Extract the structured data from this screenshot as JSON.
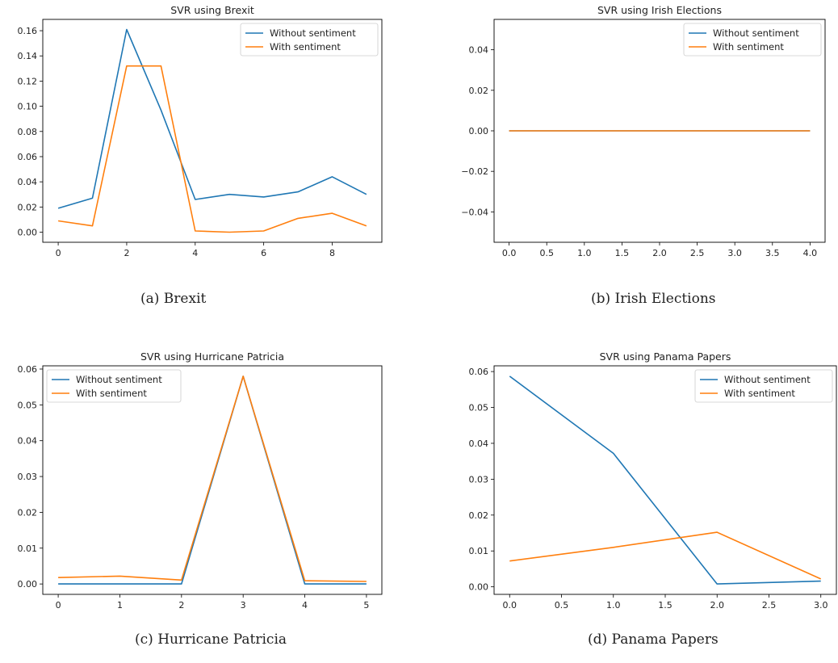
{
  "figure": {
    "panels": [
      {
        "caption": "(a)  Brexit"
      },
      {
        "caption": "(b)  Irish Elections"
      },
      {
        "caption": "(c)  Hurricane Patricia"
      },
      {
        "caption": "(d)  Panama Papers"
      }
    ]
  },
  "colors": {
    "without": "#1f77b4",
    "with": "#ff7f0e"
  },
  "chart_data": [
    {
      "type": "line",
      "title": "SVR using Brexit",
      "xlabel": "",
      "ylabel": "",
      "x": [
        0,
        1,
        2,
        3,
        4,
        5,
        6,
        7,
        8,
        9
      ],
      "series": [
        {
          "name": "Without sentiment",
          "values": [
            0.019,
            0.027,
            0.161,
            0.097,
            0.026,
            0.03,
            0.028,
            0.032,
            0.044,
            0.03
          ]
        },
        {
          "name": "With sentiment",
          "values": [
            0.009,
            0.005,
            0.132,
            0.132,
            0.001,
            0.0,
            0.001,
            0.011,
            0.015,
            0.005
          ]
        }
      ],
      "xlim": [
        -0.45,
        9.45
      ],
      "ylim": [
        -0.008,
        0.169
      ],
      "xticks": [
        0,
        2,
        4,
        6,
        8
      ],
      "xtick_labels": [
        "0",
        "2",
        "4",
        "6",
        "8"
      ],
      "yticks": [
        0,
        0.02,
        0.04,
        0.06,
        0.08,
        0.1,
        0.12,
        0.14,
        0.16
      ],
      "ytick_labels": [
        "0.00",
        "0.02",
        "0.04",
        "0.06",
        "0.08",
        "0.10",
        "0.12",
        "0.14",
        "0.16"
      ],
      "legend": "upper right",
      "grid": false
    },
    {
      "type": "line",
      "title": "SVR using Irish Elections",
      "xlabel": "",
      "ylabel": "",
      "x": [
        0,
        1,
        2,
        3,
        4
      ],
      "series": [
        {
          "name": "Without sentiment",
          "values": [
            0,
            0,
            0,
            0,
            0
          ]
        },
        {
          "name": "With sentiment",
          "values": [
            0,
            0,
            0,
            0,
            0
          ]
        }
      ],
      "xlim": [
        -0.2,
        4.2
      ],
      "ylim": [
        -0.055,
        0.055
      ],
      "xticks": [
        0,
        0.5,
        1,
        1.5,
        2,
        2.5,
        3,
        3.5,
        4
      ],
      "xtick_labels": [
        "0.0",
        "0.5",
        "1.0",
        "1.5",
        "2.0",
        "2.5",
        "3.0",
        "3.5",
        "4.0"
      ],
      "yticks": [
        -0.04,
        -0.02,
        0,
        0.02,
        0.04
      ],
      "ytick_labels": [
        "−0.04",
        "−0.02",
        "0.00",
        "0.02",
        "0.04"
      ],
      "legend": "upper right",
      "grid": false
    },
    {
      "type": "line",
      "title": "SVR using Hurricane Patricia",
      "xlabel": "",
      "ylabel": "",
      "x": [
        0,
        1,
        2,
        3,
        4,
        5
      ],
      "series": [
        {
          "name": "Without sentiment",
          "values": [
            0.0,
            0.0,
            0.0,
            0.058,
            0.0,
            0.0
          ]
        },
        {
          "name": "With sentiment",
          "values": [
            0.0018,
            0.0022,
            0.0011,
            0.058,
            0.0009,
            0.0007
          ]
        }
      ],
      "xlim": [
        -0.25,
        5.25
      ],
      "ylim": [
        -0.0029,
        0.0609
      ],
      "xticks": [
        0,
        1,
        2,
        3,
        4,
        5
      ],
      "xtick_labels": [
        "0",
        "1",
        "2",
        "3",
        "4",
        "5"
      ],
      "yticks": [
        0,
        0.01,
        0.02,
        0.03,
        0.04,
        0.05,
        0.06
      ],
      "ytick_labels": [
        "0.00",
        "0.01",
        "0.02",
        "0.03",
        "0.04",
        "0.05",
        "0.06"
      ],
      "legend": "upper left",
      "grid": false
    },
    {
      "type": "line",
      "title": "SVR using Panama Papers",
      "xlabel": "",
      "ylabel": "",
      "x": [
        0,
        1,
        2,
        3
      ],
      "series": [
        {
          "name": "Without sentiment",
          "values": [
            0.0587,
            0.0372,
            0.0008,
            0.0016
          ]
        },
        {
          "name": "With sentiment",
          "values": [
            0.0072,
            0.011,
            0.0152,
            0.0022
          ]
        }
      ],
      "xlim": [
        -0.15,
        3.15
      ],
      "ylim": [
        -0.0021,
        0.0616
      ],
      "xticks": [
        0,
        0.5,
        1,
        1.5,
        2,
        2.5,
        3
      ],
      "xtick_labels": [
        "0.0",
        "0.5",
        "1.0",
        "1.5",
        "2.0",
        "2.5",
        "3.0"
      ],
      "yticks": [
        0,
        0.01,
        0.02,
        0.03,
        0.04,
        0.05,
        0.06
      ],
      "ytick_labels": [
        "0.00",
        "0.01",
        "0.02",
        "0.03",
        "0.04",
        "0.05",
        "0.06"
      ],
      "legend": "upper right",
      "grid": false
    }
  ]
}
